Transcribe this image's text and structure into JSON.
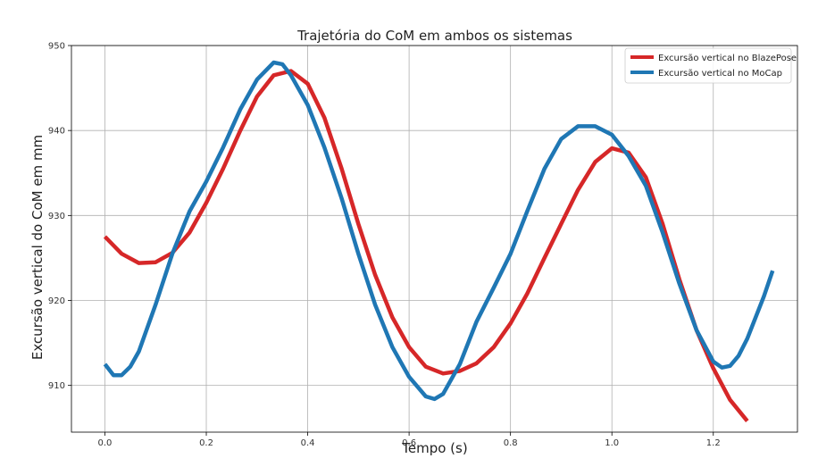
{
  "chart_data": {
    "type": "line",
    "title": "Trajetória do CoM em ambos os sistemas",
    "xlabel": "Tempo (s)",
    "ylabel": "Excursão vertical do CoM em mm",
    "xlim": [
      -0.066,
      1.366
    ],
    "ylim": [
      904.5,
      950
    ],
    "x_ticks": [
      0.0,
      0.2,
      0.4,
      0.6,
      0.8,
      1.0,
      1.2
    ],
    "x_tick_labels": [
      "0.0",
      "0.2",
      "0.4",
      "0.6",
      "0.8",
      "1.0",
      "1.2"
    ],
    "y_ticks": [
      910,
      920,
      930,
      940,
      950
    ],
    "y_tick_labels": [
      "910",
      "920",
      "930",
      "940",
      "950"
    ],
    "grid": true,
    "legend_position": "top-right",
    "series": [
      {
        "name": "Excursão vertical no BlazePose",
        "color": "#d62728",
        "points": [
          [
            0.0,
            927.5
          ],
          [
            0.033,
            925.5
          ],
          [
            0.067,
            924.4
          ],
          [
            0.1,
            924.5
          ],
          [
            0.133,
            925.6
          ],
          [
            0.167,
            928.0
          ],
          [
            0.2,
            931.5
          ],
          [
            0.233,
            935.5
          ],
          [
            0.267,
            940.0
          ],
          [
            0.3,
            944.0
          ],
          [
            0.333,
            946.5
          ],
          [
            0.367,
            947.0
          ],
          [
            0.4,
            945.5
          ],
          [
            0.433,
            941.5
          ],
          [
            0.467,
            935.5
          ],
          [
            0.5,
            929.0
          ],
          [
            0.533,
            923.0
          ],
          [
            0.567,
            918.0
          ],
          [
            0.6,
            914.5
          ],
          [
            0.633,
            912.2
          ],
          [
            0.667,
            911.4
          ],
          [
            0.7,
            911.7
          ],
          [
            0.733,
            912.6
          ],
          [
            0.767,
            914.5
          ],
          [
            0.8,
            917.3
          ],
          [
            0.833,
            920.8
          ],
          [
            0.867,
            925.0
          ],
          [
            0.9,
            929.0
          ],
          [
            0.933,
            933.0
          ],
          [
            0.967,
            936.3
          ],
          [
            1.0,
            937.9
          ],
          [
            1.033,
            937.4
          ],
          [
            1.067,
            934.5
          ],
          [
            1.1,
            929.0
          ],
          [
            1.133,
            922.5
          ],
          [
            1.167,
            916.5
          ],
          [
            1.2,
            912.0
          ],
          [
            1.233,
            908.3
          ],
          [
            1.267,
            905.8
          ]
        ]
      },
      {
        "name": "Excursão vertical no MoCap",
        "color": "#1f77b4",
        "points": [
          [
            0.0,
            912.5
          ],
          [
            0.017,
            911.2
          ],
          [
            0.033,
            911.2
          ],
          [
            0.05,
            912.2
          ],
          [
            0.067,
            914.0
          ],
          [
            0.1,
            919.5
          ],
          [
            0.133,
            925.5
          ],
          [
            0.167,
            930.5
          ],
          [
            0.2,
            934.0
          ],
          [
            0.233,
            938.0
          ],
          [
            0.267,
            942.5
          ],
          [
            0.3,
            946.0
          ],
          [
            0.333,
            948.0
          ],
          [
            0.35,
            947.8
          ],
          [
            0.367,
            946.5
          ],
          [
            0.4,
            943.0
          ],
          [
            0.433,
            938.0
          ],
          [
            0.467,
            932.0
          ],
          [
            0.5,
            925.5
          ],
          [
            0.533,
            919.5
          ],
          [
            0.567,
            914.5
          ],
          [
            0.6,
            911.0
          ],
          [
            0.633,
            908.7
          ],
          [
            0.65,
            908.4
          ],
          [
            0.667,
            909.0
          ],
          [
            0.7,
            912.5
          ],
          [
            0.733,
            917.5
          ],
          [
            0.767,
            921.5
          ],
          [
            0.8,
            925.5
          ],
          [
            0.833,
            930.5
          ],
          [
            0.867,
            935.5
          ],
          [
            0.9,
            939.0
          ],
          [
            0.933,
            940.5
          ],
          [
            0.967,
            940.5
          ],
          [
            1.0,
            939.5
          ],
          [
            1.033,
            937.0
          ],
          [
            1.067,
            933.5
          ],
          [
            1.1,
            928.0
          ],
          [
            1.133,
            922.0
          ],
          [
            1.167,
            916.5
          ],
          [
            1.2,
            912.8
          ],
          [
            1.217,
            912.1
          ],
          [
            1.233,
            912.3
          ],
          [
            1.25,
            913.5
          ],
          [
            1.267,
            915.5
          ],
          [
            1.3,
            920.5
          ],
          [
            1.317,
            923.5
          ]
        ]
      }
    ]
  }
}
